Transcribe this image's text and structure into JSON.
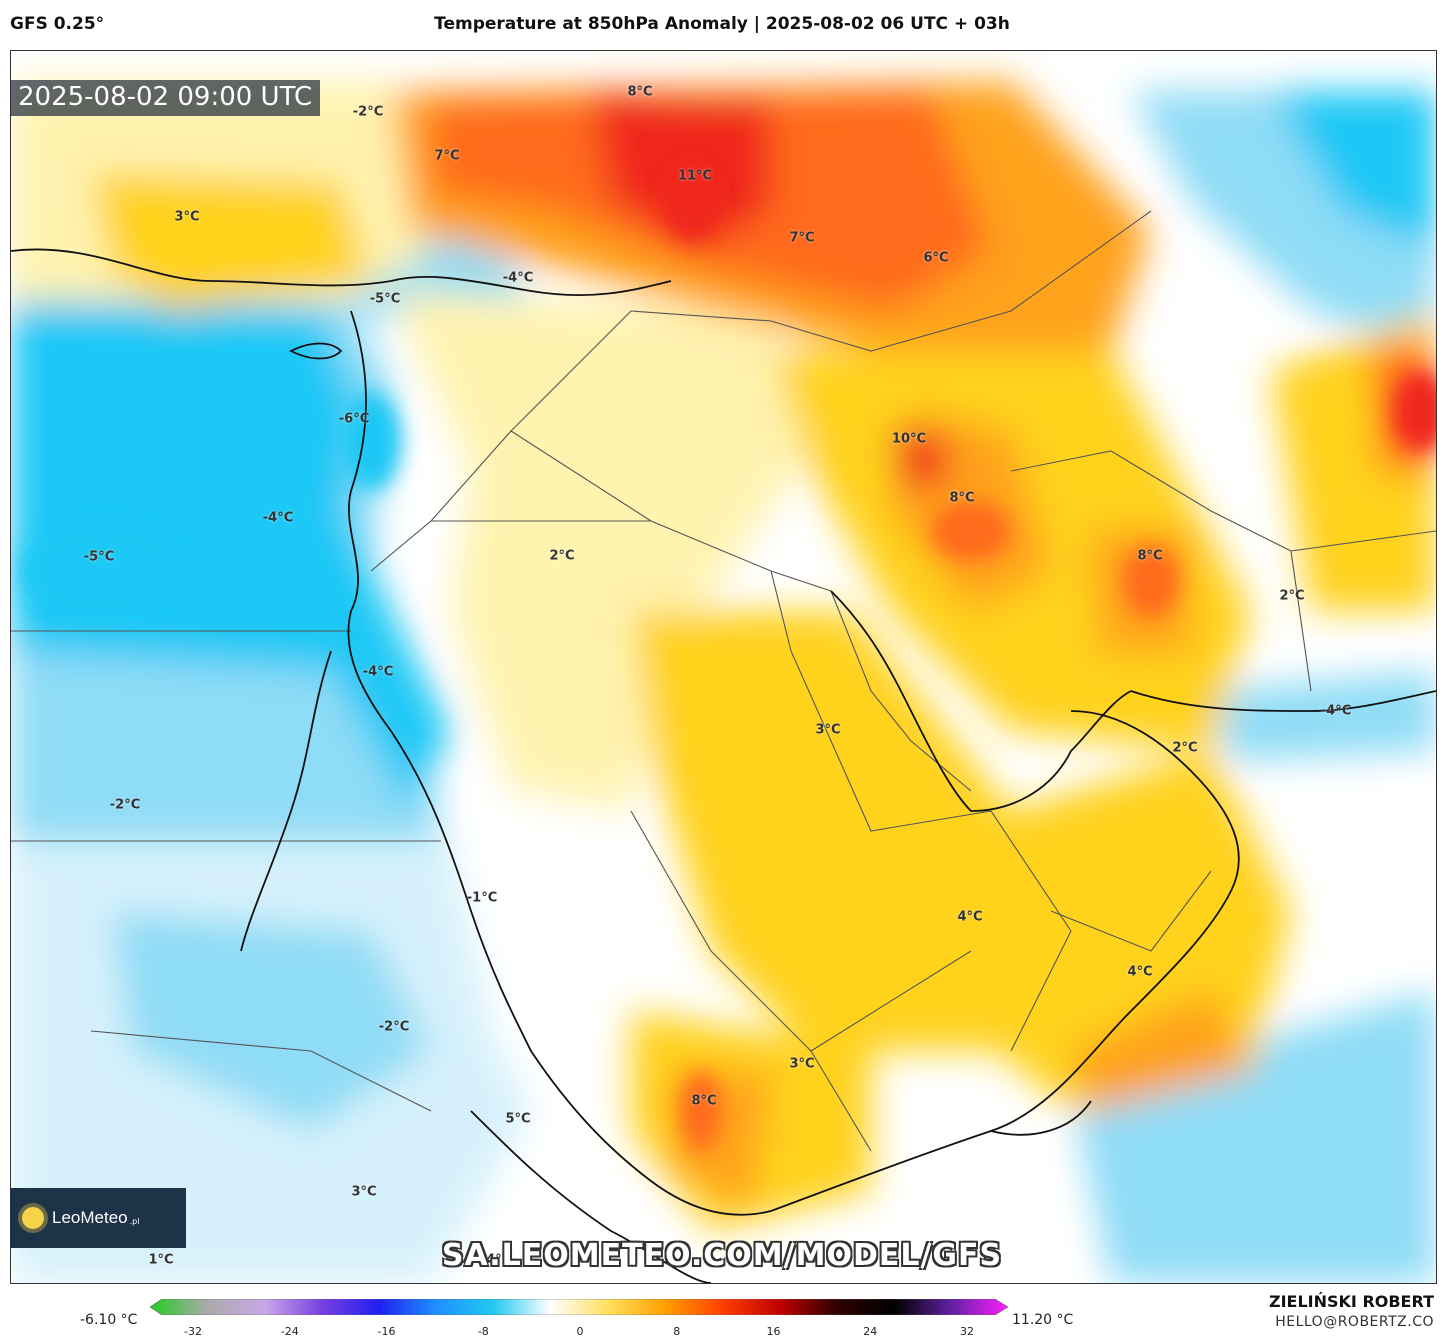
{
  "header": {
    "model": "GFS 0.25°",
    "title": "Temperature at 850hPa Anomaly | 2025-08-02 06 UTC + 03h"
  },
  "map": {
    "timestamp": "2025-08-02 09:00 UTC",
    "watermark_url": "SA.LEOMETEO.COM/MODEL/GFS",
    "logo_text": "LeoMeteo",
    "logo_sub": ".pl",
    "labels": [
      {
        "text": "8°C"
      },
      {
        "text": "7°C"
      },
      {
        "text": "-2°C"
      },
      {
        "text": "3°C"
      },
      {
        "text": "11°C"
      },
      {
        "text": "7°C"
      },
      {
        "text": "6°C"
      },
      {
        "text": "-4°C"
      },
      {
        "text": "-5°C"
      },
      {
        "text": "-6°C"
      },
      {
        "text": "10°C"
      },
      {
        "text": "8°C"
      },
      {
        "text": "8°C"
      },
      {
        "text": "-4°C"
      },
      {
        "text": "-5°C"
      },
      {
        "text": "2°C"
      },
      {
        "text": "2°C"
      },
      {
        "text": "-4°C"
      },
      {
        "text": "-4°C"
      },
      {
        "text": "3°C"
      },
      {
        "text": "2°C"
      },
      {
        "text": "-2°C"
      },
      {
        "text": "-1°C"
      },
      {
        "text": "4°C"
      },
      {
        "text": "4°C"
      },
      {
        "text": "-2°C"
      },
      {
        "text": "3°C"
      },
      {
        "text": "8°C"
      },
      {
        "text": "5°C"
      },
      {
        "text": "3°C"
      },
      {
        "text": "1°C"
      },
      {
        "text": "-4°C"
      }
    ],
    "colors": {
      "cold_strong": "#1ec8f5",
      "cold": "#8fdcf6",
      "cold_light": "#d6f1fb",
      "neutral": "#ffffff",
      "warm_light": "#fff3b0",
      "warm": "#ffd21e",
      "warm_strong": "#ffa21e",
      "hot": "#ff6a1e",
      "hottest": "#f0281e"
    }
  },
  "colorbar": {
    "min_label": "-6.10 °C",
    "max_label": "11.20 °C",
    "ticks": [
      "-32",
      "-24",
      "-16",
      "-8",
      "0",
      "8",
      "16",
      "24",
      "32"
    ],
    "stops": [
      "#22cc22",
      "#aaaaaa",
      "#c8a8e8",
      "#7840e0",
      "#2020f0",
      "#1e90ff",
      "#22c8f0",
      "#ffffff",
      "#ffe060",
      "#ffa000",
      "#ff4000",
      "#c00000",
      "#300000",
      "#000000",
      "#6020a0",
      "#ff20ff"
    ]
  },
  "credits": {
    "author": "ZIELIŃSKI ROBERT",
    "email": "HELLO@ROBERTZ.CO"
  }
}
